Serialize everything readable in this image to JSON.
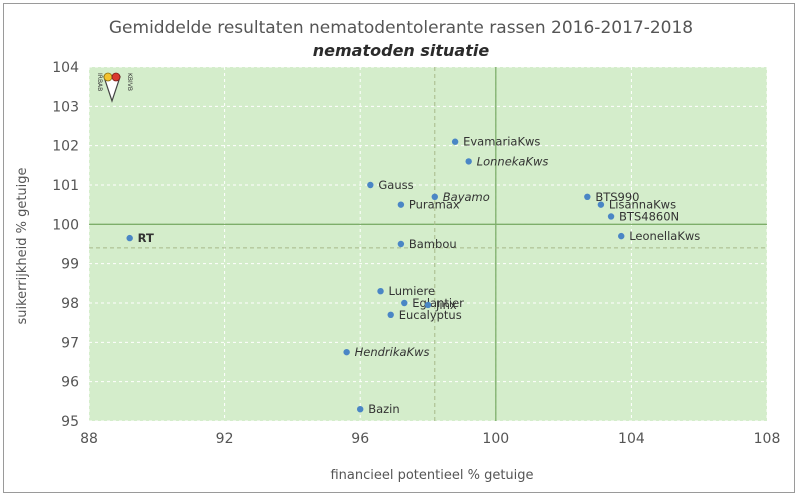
{
  "chart_data": {
    "type": "scatter",
    "title": "Gemiddelde resultaten nematodentolerante rassen 2016-2017-2018",
    "subtitle": "nematoden situatie",
    "xlabel": "financieel  potentieel % getuige",
    "ylabel": "suikerrijkheid % getuige",
    "xlim": [
      88,
      108
    ],
    "ylim": [
      95,
      104
    ],
    "xticks": [
      "88",
      "92",
      "96",
      "100",
      "104",
      "108"
    ],
    "yticks": [
      "95",
      "96",
      "97",
      "98",
      "99",
      "100",
      "101",
      "102",
      "103",
      "104"
    ],
    "reference_lines": [
      {
        "orientation": "vertical",
        "value": 100,
        "style": "solid"
      },
      {
        "orientation": "horizontal",
        "value": 100,
        "style": "solid"
      },
      {
        "orientation": "vertical",
        "value": 98.2,
        "style": "dashed"
      },
      {
        "orientation": "horizontal",
        "value": 99.4,
        "style": "dashed"
      }
    ],
    "point_color": "#4a86c5",
    "background_color": "#d4edcb",
    "points": [
      {
        "label": "EvamariaKws",
        "x": 98.8,
        "y": 102.1,
        "style": "normal"
      },
      {
        "label": "LonnekaKws",
        "x": 99.2,
        "y": 101.6,
        "style": "italic"
      },
      {
        "label": "Gauss",
        "x": 96.3,
        "y": 101.0,
        "style": "normal"
      },
      {
        "label": "Bayamo",
        "x": 98.2,
        "y": 100.7,
        "style": "italic"
      },
      {
        "label": "Puramax",
        "x": 97.2,
        "y": 100.5,
        "style": "normal"
      },
      {
        "label": "BTS990",
        "x": 102.7,
        "y": 100.7,
        "style": "normal"
      },
      {
        "label": "LisannaKws",
        "x": 103.1,
        "y": 100.5,
        "style": "normal"
      },
      {
        "label": "BTS4860N",
        "x": 103.4,
        "y": 100.2,
        "style": "normal"
      },
      {
        "label": "LeonellaKws",
        "x": 103.7,
        "y": 99.7,
        "style": "normal"
      },
      {
        "label": "RT",
        "x": 89.2,
        "y": 99.65,
        "style": "bold"
      },
      {
        "label": "Bambou",
        "x": 97.2,
        "y": 99.5,
        "style": "normal"
      },
      {
        "label": "Lumiere",
        "x": 96.6,
        "y": 98.3,
        "style": "normal"
      },
      {
        "label": "Eglantier",
        "x": 97.3,
        "y": 98.0,
        "style": "normal"
      },
      {
        "label": "Jinx",
        "x": 98.0,
        "y": 97.95,
        "style": "normal"
      },
      {
        "label": "Eucalyptus",
        "x": 96.9,
        "y": 97.7,
        "style": "normal"
      },
      {
        "label": "HendrikaKws",
        "x": 95.6,
        "y": 96.75,
        "style": "italic-red"
      },
      {
        "label": "Bazin",
        "x": 96.0,
        "y": 95.3,
        "style": "normal"
      }
    ]
  },
  "logo": {
    "text_left": "IRBAB",
    "text_right": "KBIVB",
    "icon": "irbab-logo-icon"
  }
}
